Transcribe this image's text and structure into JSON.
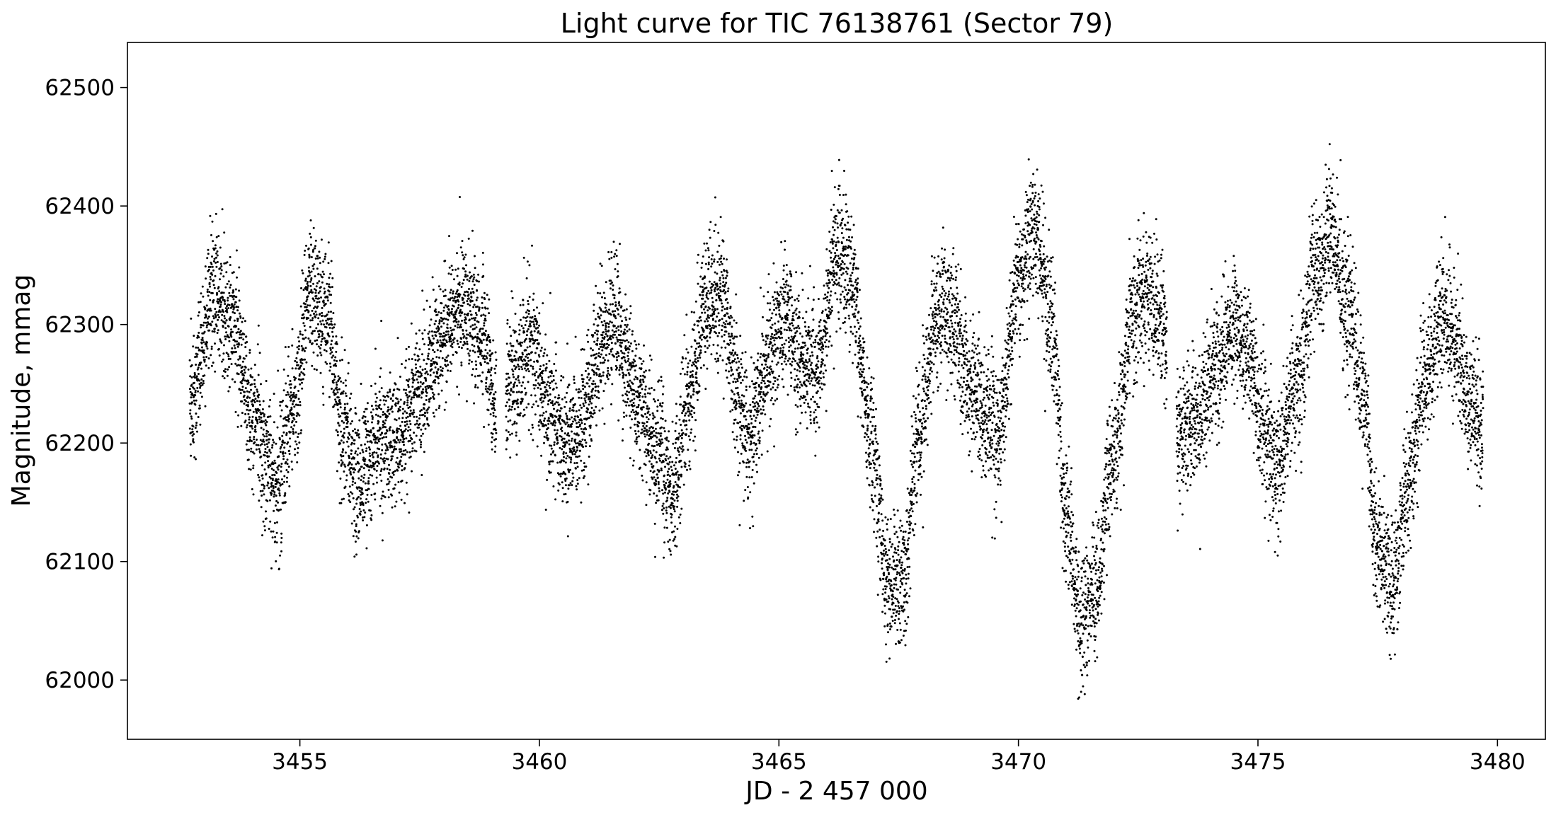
{
  "chart_data": {
    "type": "scatter",
    "title": "Light curve for TIC 76138761 (Sector 79)",
    "xlabel": "JD - 2 457 000",
    "ylabel": "Magnitude, mmag",
    "xlim": [
      3451.4,
      3481.0
    ],
    "ylim": [
      61950,
      62538
    ],
    "xticks": [
      3455,
      3460,
      3465,
      3470,
      3475,
      3480
    ],
    "yticks": [
      62000,
      62100,
      62200,
      62300,
      62400,
      62500
    ],
    "grid": false,
    "legend": "none",
    "marker_color": "#000000",
    "segments": [
      [
        3452.7,
        3459.1
      ],
      [
        3459.3,
        3465.8
      ],
      [
        3465.8,
        3473.1
      ],
      [
        3473.3,
        3479.7
      ]
    ],
    "trend": [
      [
        3452.7,
        62235
      ],
      [
        3453.2,
        62325
      ],
      [
        3453.6,
        62300
      ],
      [
        3454.0,
        62220
      ],
      [
        3454.5,
        62165
      ],
      [
        3454.9,
        62230
      ],
      [
        3455.2,
        62330
      ],
      [
        3455.6,
        62300
      ],
      [
        3455.9,
        62210
      ],
      [
        3456.2,
        62165
      ],
      [
        3456.6,
        62205
      ],
      [
        3457.0,
        62200
      ],
      [
        3457.5,
        62240
      ],
      [
        3458.0,
        62290
      ],
      [
        3458.4,
        62315
      ],
      [
        3458.8,
        62290
      ],
      [
        3459.1,
        62230
      ],
      [
        3459.5,
        62250
      ],
      [
        3459.8,
        62285
      ],
      [
        3460.2,
        62230
      ],
      [
        3460.5,
        62200
      ],
      [
        3460.9,
        62220
      ],
      [
        3461.3,
        62285
      ],
      [
        3461.6,
        62300
      ],
      [
        3462.0,
        62240
      ],
      [
        3462.5,
        62190
      ],
      [
        3462.8,
        62160
      ],
      [
        3463.1,
        62230
      ],
      [
        3463.5,
        62320
      ],
      [
        3463.8,
        62320
      ],
      [
        3464.1,
        62250
      ],
      [
        3464.4,
        62205
      ],
      [
        3464.8,
        62270
      ],
      [
        3465.1,
        62310
      ],
      [
        3465.5,
        62270
      ],
      [
        3465.8,
        62260
      ],
      [
        3466.2,
        62365
      ],
      [
        3466.5,
        62340
      ],
      [
        3466.9,
        62210
      ],
      [
        3467.3,
        62080
      ],
      [
        3467.6,
        62085
      ],
      [
        3467.9,
        62200
      ],
      [
        3468.3,
        62310
      ],
      [
        3468.6,
        62305
      ],
      [
        3469.0,
        62250
      ],
      [
        3469.3,
        62225
      ],
      [
        3469.6,
        62210
      ],
      [
        3470.0,
        62340
      ],
      [
        3470.3,
        62385
      ],
      [
        3470.7,
        62300
      ],
      [
        3471.0,
        62140
      ],
      [
        3471.3,
        62050
      ],
      [
        3471.6,
        62075
      ],
      [
        3472.0,
        62190
      ],
      [
        3472.4,
        62310
      ],
      [
        3472.7,
        62330
      ],
      [
        3473.1,
        62290
      ],
      [
        3473.3,
        62210
      ],
      [
        3473.7,
        62215
      ],
      [
        3474.1,
        62260
      ],
      [
        3474.5,
        62300
      ],
      [
        3474.8,
        62270
      ],
      [
        3475.1,
        62215
      ],
      [
        3475.4,
        62185
      ],
      [
        3475.8,
        62245
      ],
      [
        3476.2,
        62340
      ],
      [
        3476.5,
        62375
      ],
      [
        3476.9,
        62310
      ],
      [
        3477.2,
        62240
      ],
      [
        3477.5,
        62110
      ],
      [
        3477.8,
        62080
      ],
      [
        3478.1,
        62160
      ],
      [
        3478.5,
        62250
      ],
      [
        3478.8,
        62305
      ],
      [
        3479.1,
        62290
      ],
      [
        3479.4,
        62230
      ],
      [
        3479.7,
        62215
      ]
    ],
    "scatter_mmag": 28,
    "cadence_days": 0.0022
  }
}
